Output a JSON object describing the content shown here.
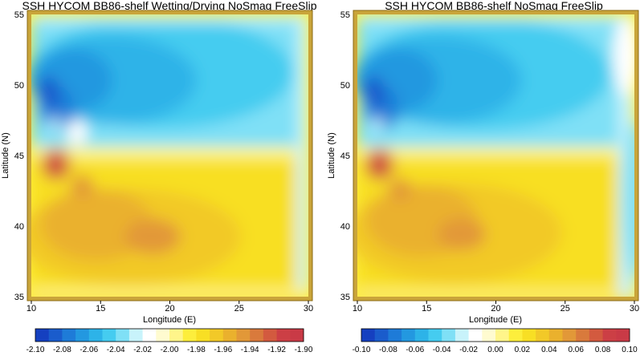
{
  "chart_data": [
    {
      "type": "heatmap",
      "title": "SSH HYCOM BB86-shelf Wetting/Drying NoSmag FreeSlip",
      "xlabel": "Longitude (E)",
      "ylabel": "Latitude (N)",
      "xlim": [
        10,
        30
      ],
      "ylim": [
        35,
        55
      ],
      "x_ticks": [
        "10",
        "15",
        "20",
        "25",
        "30"
      ],
      "y_ticks": [
        "35",
        "40",
        "45",
        "50",
        "55"
      ],
      "colorbar_ticks": [
        "-2.10",
        "-2.08",
        "-2.06",
        "-2.04",
        "-2.02",
        "-2.00",
        "-1.98",
        "-1.96",
        "-1.94",
        "-1.92",
        "-1.90"
      ],
      "colorbar_range": [
        -2.1,
        -1.9
      ],
      "boundary_color": "#c9a43a",
      "features": {
        "gyre_split_lat": 45.5,
        "north_minimum": [
          11.5,
          50.5
        ],
        "south_plateau": [
          17.0,
          39.5
        ],
        "coastal_maximum": [
          11.5,
          44.5
        ]
      }
    },
    {
      "type": "heatmap",
      "title": "SSH HYCOM BB86-shelf  NoSmag FreeSlip",
      "xlabel": "Longitude (E)",
      "ylabel": "Latitude (N)",
      "xlim": [
        10,
        30
      ],
      "ylim": [
        35,
        55
      ],
      "x_ticks": [
        "10",
        "15",
        "20",
        "25",
        "30"
      ],
      "y_ticks": [
        "35",
        "40",
        "45",
        "50",
        "55"
      ],
      "colorbar_ticks": [
        "-0.10",
        "-0.08",
        "-0.06",
        "-0.04",
        "-0.02",
        "0.00",
        "0.02",
        "0.04",
        "0.06",
        "0.08",
        "0.10"
      ],
      "colorbar_range": [
        -0.1,
        0.1
      ],
      "boundary_color": "#c9a43a",
      "features": {
        "gyre_split_lat": 45.5,
        "north_minimum": [
          11.5,
          50.5
        ],
        "south_plateau": [
          17.0,
          39.5
        ],
        "coastal_maximum": [
          11.5,
          44.5
        ]
      }
    }
  ],
  "colors": {
    "palette": [
      "#1540c0",
      "#1a5ccc",
      "#1e7bd8",
      "#2398e0",
      "#2db3e8",
      "#45ccf0",
      "#7fe0f6",
      "#c8f3fb",
      "#ffffff",
      "#fffbd0",
      "#fff58a",
      "#fdee3c",
      "#f8df24",
      "#f2c928",
      "#eab12d",
      "#e29838",
      "#d97a3c",
      "#d35a3f",
      "#cc3f45"
    ]
  }
}
